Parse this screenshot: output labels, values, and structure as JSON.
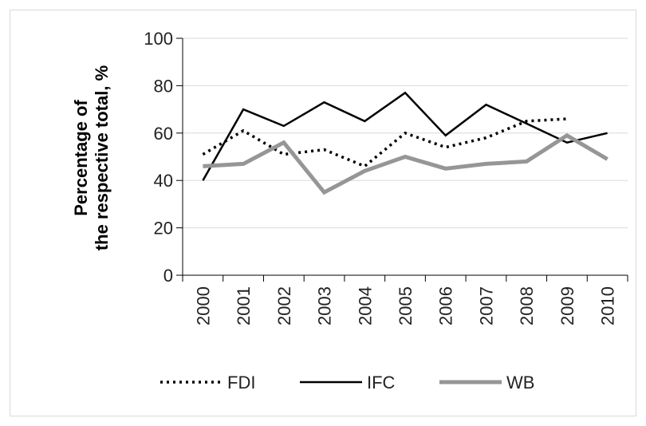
{
  "chart_data": {
    "type": "line",
    "categories": [
      "2000",
      "2001",
      "2002",
      "2003",
      "2004",
      "2005",
      "2006",
      "2007",
      "2008",
      "2009",
      "2010"
    ],
    "ylabel_line1": "Percentage of",
    "ylabel_line2": "the respective total, %",
    "ylim": [
      0,
      100
    ],
    "yticks": [
      0,
      20,
      40,
      60,
      80,
      100
    ],
    "yticks_labels": [
      "0",
      "20",
      "40",
      "60",
      "80",
      "100"
    ],
    "grid": true,
    "legend_position": "bottom",
    "series": [
      {
        "name": "FDI",
        "style": "dotted",
        "color": "#000000",
        "values": [
          51,
          61,
          51,
          53,
          46,
          60,
          54,
          58,
          65,
          66,
          null
        ]
      },
      {
        "name": "IFC",
        "style": "solid",
        "color": "#000000",
        "values": [
          40,
          70,
          63,
          73,
          65,
          77,
          59,
          72,
          64,
          56,
          60
        ]
      },
      {
        "name": "WB",
        "style": "thick",
        "color": "#969696",
        "values": [
          46,
          47,
          56,
          35,
          44,
          50,
          45,
          47,
          48,
          59,
          49
        ]
      }
    ]
  }
}
